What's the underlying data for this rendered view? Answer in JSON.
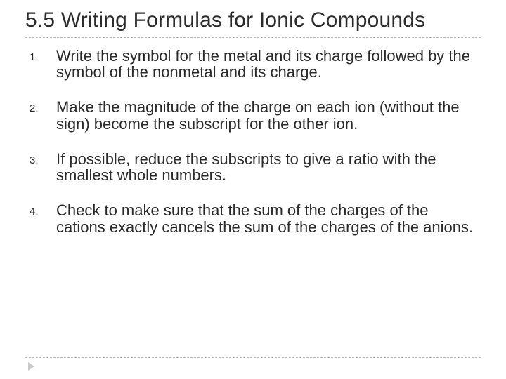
{
  "title": "5.5  Writing Formulas for Ionic Compounds",
  "items": [
    {
      "num": "1.",
      "text": "Write the symbol for the metal and its charge followed by the symbol of the nonmetal and its charge."
    },
    {
      "num": "2.",
      "text": "Make the magnitude of the charge on each ion (without the sign) become the subscript for the other ion."
    },
    {
      "num": "3.",
      "text": "If possible, reduce the subscripts to give a ratio with the smallest whole numbers."
    },
    {
      "num": "4.",
      "text": "Check to make sure that the sum of the charges of the cations exactly cancels the sum of the charges of the anions."
    }
  ],
  "colors": {
    "text": "#2b2b2b",
    "divider": "#b9b9b9",
    "arrow": "#c9c9c9",
    "background": "#ffffff"
  },
  "typography": {
    "title_fontsize": 30,
    "body_fontsize": 22,
    "num_fontsize": 15,
    "font_family": "Arial"
  }
}
